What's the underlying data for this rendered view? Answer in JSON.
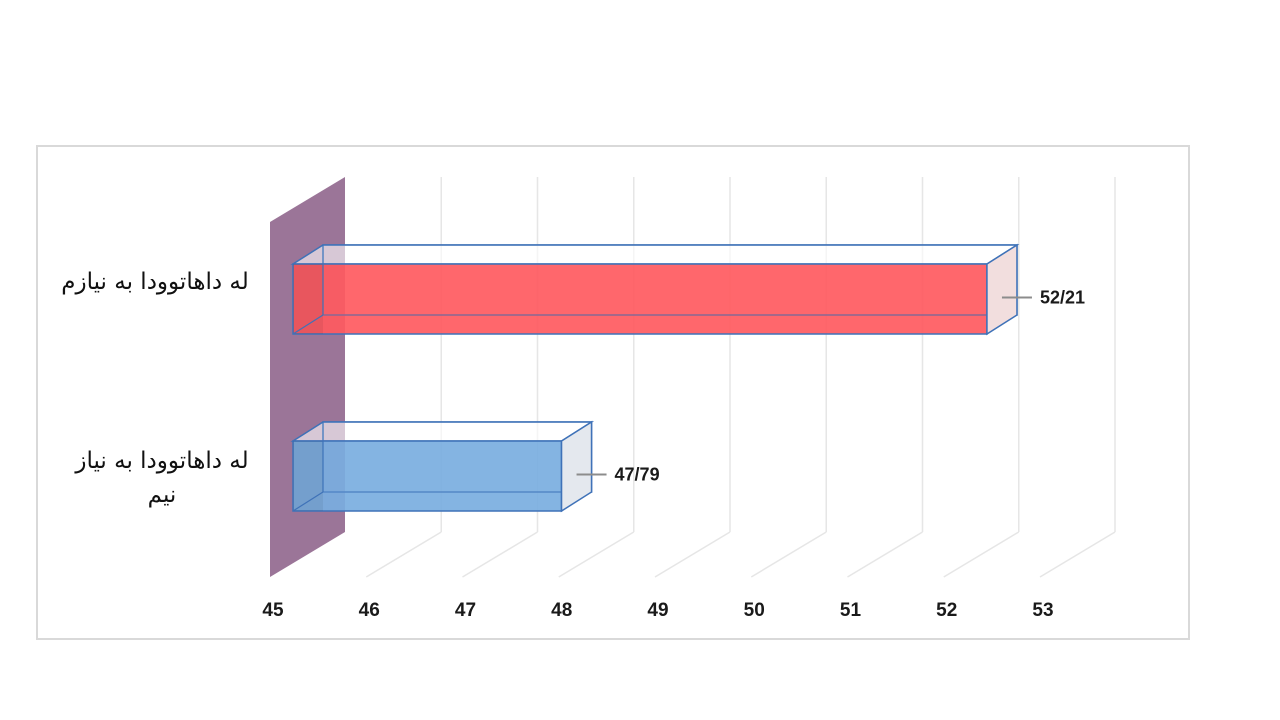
{
  "chart_data": {
    "type": "bar",
    "orientation": "horizontal",
    "three_d": true,
    "categories": [
      "له داهاتوودا به نیازم",
      "له داهاتوودا به نیاز نیم"
    ],
    "values": [
      52.21,
      47.79
    ],
    "data_labels": [
      "52/21",
      "47/79"
    ],
    "bar_colors": [
      "#ff5a5f",
      "#7aaee0"
    ],
    "bar_edge_color": "#3f72b8",
    "wall_color": "#9b7598",
    "xlim": [
      45,
      53
    ],
    "x_ticks": [
      "45",
      "46",
      "47",
      "48",
      "49",
      "50",
      "51",
      "52",
      "53"
    ],
    "grid": true,
    "title": "",
    "xlabel": "",
    "ylabel": ""
  }
}
